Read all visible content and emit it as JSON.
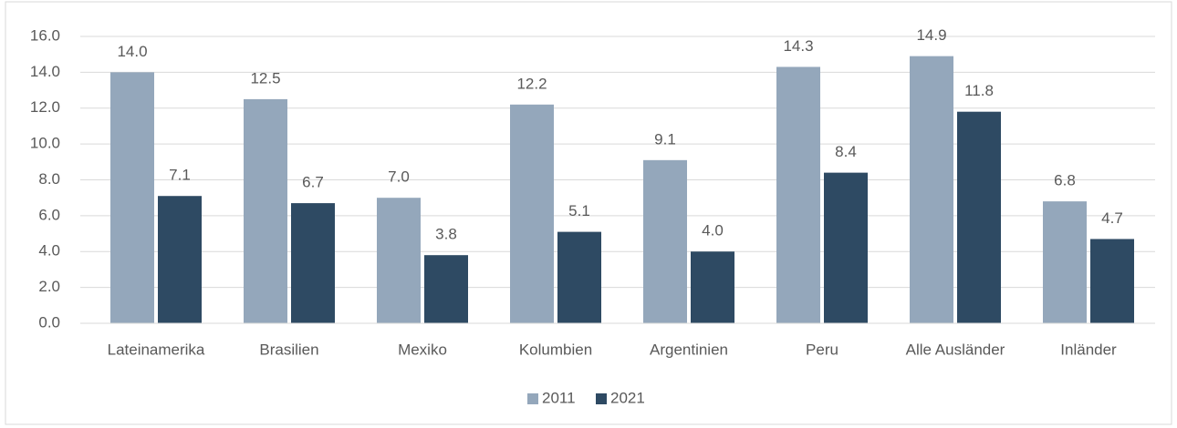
{
  "chart_data": {
    "type": "bar",
    "categories": [
      "Lateinamerika",
      "Brasilien",
      "Mexiko",
      "Kolumbien",
      "Argentinien",
      "Peru",
      "Alle Ausländer",
      "Inländer"
    ],
    "series": [
      {
        "name": "2011",
        "color": "#94a7bb",
        "values": [
          14.0,
          12.5,
          7.0,
          12.2,
          9.1,
          14.3,
          14.9,
          6.8
        ],
        "value_labels": [
          "14.0",
          "12.5",
          "7.0",
          "12.2",
          "9.1",
          "14.3",
          "14.9",
          "6.8"
        ]
      },
      {
        "name": "2021",
        "color": "#2e4a63",
        "values": [
          7.1,
          6.7,
          3.8,
          5.1,
          4.0,
          8.4,
          11.8,
          4.7
        ],
        "value_labels": [
          "7.1",
          "6.7",
          "3.8",
          "5.1",
          "4.0",
          "8.4",
          "11.8",
          "4.7"
        ]
      }
    ],
    "ylim": [
      0,
      16
    ],
    "yticks": [
      {
        "value": 0,
        "label": "0.0"
      },
      {
        "value": 2,
        "label": "2.0"
      },
      {
        "value": 4,
        "label": "4.0"
      },
      {
        "value": 6,
        "label": "6.0"
      },
      {
        "value": 8,
        "label": "8.0"
      },
      {
        "value": 10,
        "label": "10.0"
      },
      {
        "value": 12,
        "label": "12.0"
      },
      {
        "value": 14,
        "label": "14.0"
      },
      {
        "value": 16,
        "label": "16.0"
      }
    ],
    "grid": true,
    "legend": "bottom"
  }
}
